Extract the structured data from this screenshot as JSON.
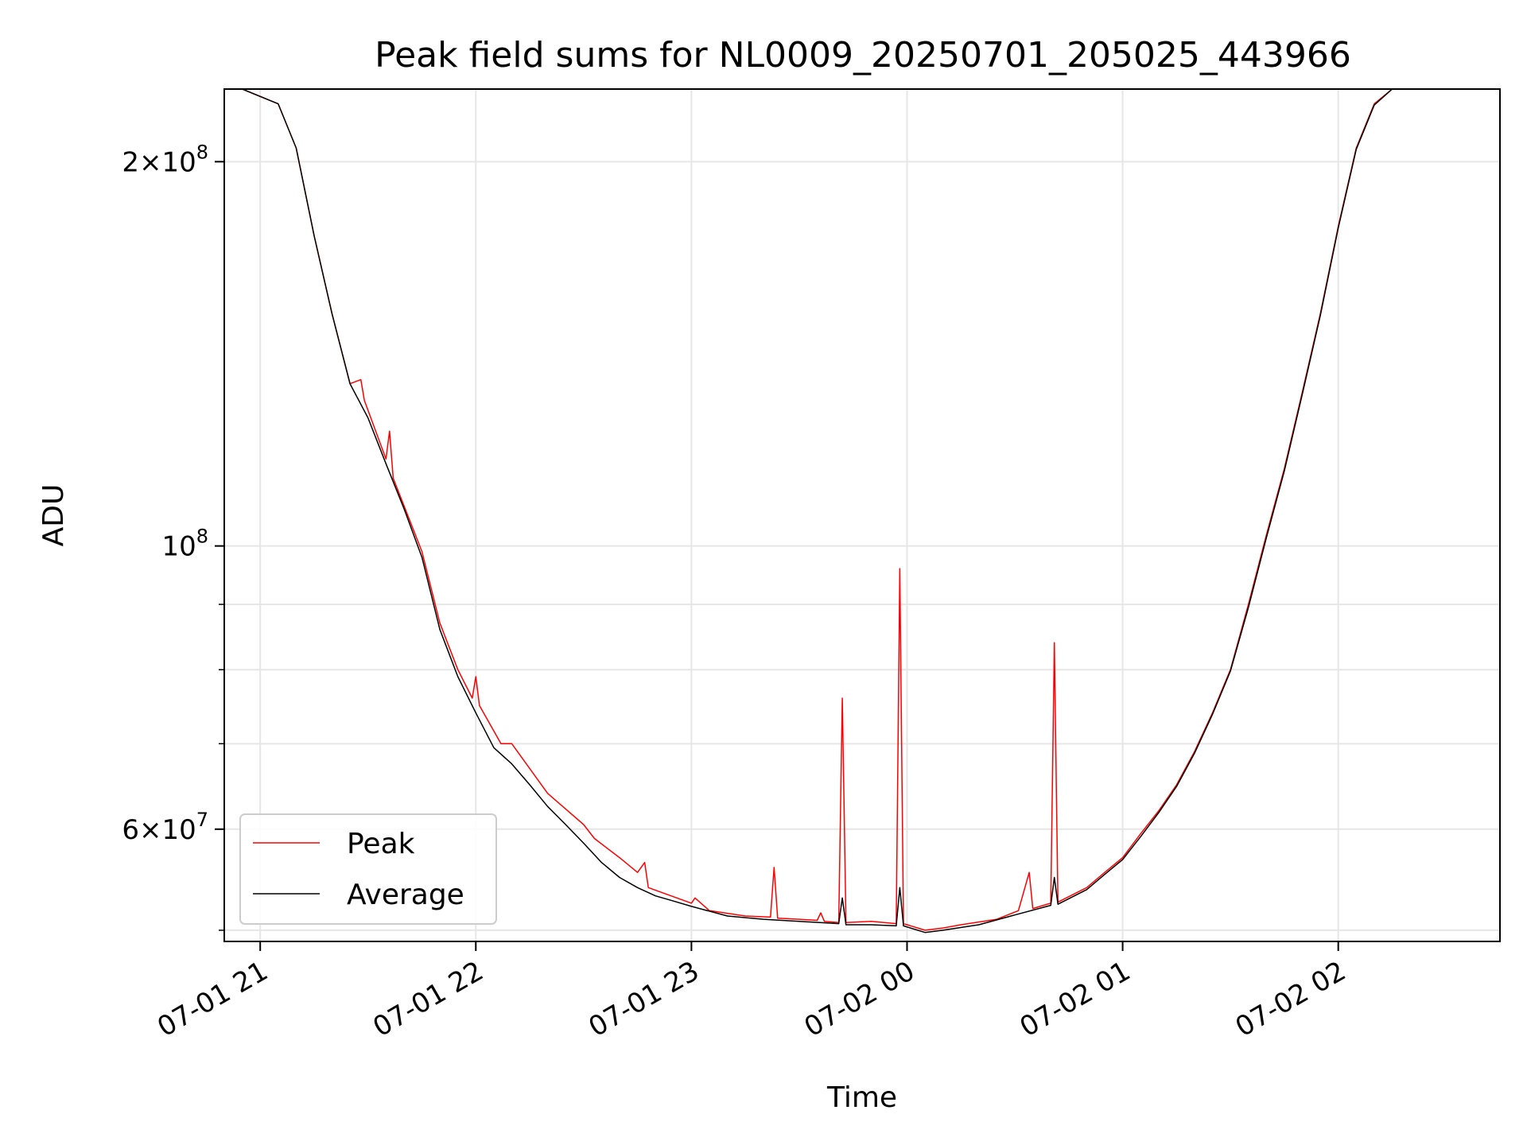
{
  "chart_data": {
    "type": "line",
    "title": "Peak field sums for NL0009_20250701_205025_443966",
    "xlabel": "Time",
    "ylabel": "ADU",
    "yscale": "log",
    "ylim": [
      49000000,
      228000000
    ],
    "xlim": [
      "2025-07-01 20:50",
      "2025-07-02 02:45"
    ],
    "grid": true,
    "legend_position": "lower-left",
    "x_ticks": [
      {
        "label": "07-01 21",
        "value": "2025-07-01 21:00"
      },
      {
        "label": "07-01 22",
        "value": "2025-07-01 22:00"
      },
      {
        "label": "07-01 23",
        "value": "2025-07-01 23:00"
      },
      {
        "label": "07-02 00",
        "value": "2025-07-02 00:00"
      },
      {
        "label": "07-02 01",
        "value": "2025-07-02 01:00"
      },
      {
        "label": "07-02 02",
        "value": "2025-07-02 02:00"
      }
    ],
    "y_ticks": [
      {
        "mantissa": "2",
        "exp": "8",
        "value": 200000000
      },
      {
        "mantissa": "",
        "exp": "8",
        "value": 100000000
      },
      {
        "mantissa": "6",
        "exp": "7",
        "value": 60000000
      }
    ],
    "series": [
      {
        "name": "Peak",
        "color": "#ff0000",
        "points": [
          [
            "2025-07-01 20:55",
            228000000
          ],
          [
            "2025-07-01 21:05",
            222000000
          ],
          [
            "2025-07-01 21:10",
            205000000
          ],
          [
            "2025-07-01 21:15",
            175000000
          ],
          [
            "2025-07-01 21:20",
            152000000
          ],
          [
            "2025-07-01 21:25",
            134000000
          ],
          [
            "2025-07-01 21:28",
            135000000
          ],
          [
            "2025-07-01 21:29",
            130000000
          ],
          [
            "2025-07-01 21:35",
            117000000
          ],
          [
            "2025-07-01 21:36",
            123000000
          ],
          [
            "2025-07-01 21:37",
            113000000
          ],
          [
            "2025-07-01 21:45",
            99000000
          ],
          [
            "2025-07-01 21:50",
            87000000
          ],
          [
            "2025-07-01 21:55",
            80000000
          ],
          [
            "2025-07-01 21:59",
            76000000
          ],
          [
            "2025-07-01 22:00",
            79000000
          ],
          [
            "2025-07-01 22:01",
            75000000
          ],
          [
            "2025-07-01 22:07",
            70000000
          ],
          [
            "2025-07-01 22:10",
            70000000
          ],
          [
            "2025-07-01 22:20",
            64000000
          ],
          [
            "2025-07-01 22:30",
            60500000
          ],
          [
            "2025-07-01 22:33",
            59000000
          ],
          [
            "2025-07-01 22:40",
            57000000
          ],
          [
            "2025-07-01 22:45",
            55500000
          ],
          [
            "2025-07-01 22:47",
            56500000
          ],
          [
            "2025-07-01 22:48",
            54000000
          ],
          [
            "2025-07-01 23:00",
            52500000
          ],
          [
            "2025-07-01 23:01",
            53000000
          ],
          [
            "2025-07-01 23:05",
            51800000
          ],
          [
            "2025-07-01 23:15",
            51300000
          ],
          [
            "2025-07-01 23:22",
            51200000
          ],
          [
            "2025-07-01 23:23",
            56000000
          ],
          [
            "2025-07-01 23:24",
            51100000
          ],
          [
            "2025-07-01 23:30",
            51000000
          ],
          [
            "2025-07-01 23:35",
            50900000
          ],
          [
            "2025-07-01 23:36",
            51600000
          ],
          [
            "2025-07-01 23:37",
            50800000
          ],
          [
            "2025-07-01 23:41",
            50700000
          ],
          [
            "2025-07-01 23:42",
            76000000
          ],
          [
            "2025-07-01 23:43",
            50700000
          ],
          [
            "2025-07-01 23:50",
            50800000
          ],
          [
            "2025-07-01 23:57",
            50600000
          ],
          [
            "2025-07-01 23:58",
            96000000
          ],
          [
            "2025-07-01 23:59",
            50600000
          ],
          [
            "2025-07-02 00:05",
            50000000
          ],
          [
            "2025-07-02 00:10",
            50200000
          ],
          [
            "2025-07-02 00:15",
            50500000
          ],
          [
            "2025-07-02 00:25",
            51000000
          ],
          [
            "2025-07-02 00:31",
            51800000
          ],
          [
            "2025-07-02 00:34",
            55500000
          ],
          [
            "2025-07-02 00:35",
            52000000
          ],
          [
            "2025-07-02 00:40",
            52500000
          ],
          [
            "2025-07-02 00:41",
            84000000
          ],
          [
            "2025-07-02 00:42",
            52600000
          ],
          [
            "2025-07-02 00:50",
            54000000
          ],
          [
            "2025-07-02 00:55",
            55500000
          ],
          [
            "2025-07-02 01:00",
            57000000
          ],
          [
            "2025-07-02 01:05",
            59500000
          ],
          [
            "2025-07-02 01:10",
            62000000
          ],
          [
            "2025-07-02 01:15",
            65000000
          ],
          [
            "2025-07-02 01:20",
            69000000
          ],
          [
            "2025-07-02 01:25",
            74000000
          ],
          [
            "2025-07-02 01:30",
            80000000
          ],
          [
            "2025-07-02 01:35",
            90000000
          ],
          [
            "2025-07-02 01:40",
            102000000
          ],
          [
            "2025-07-02 01:45",
            115000000
          ],
          [
            "2025-07-02 01:50",
            132000000
          ],
          [
            "2025-07-02 01:55",
            152000000
          ],
          [
            "2025-07-02 02:00",
            178000000
          ],
          [
            "2025-07-02 02:05",
            205000000
          ],
          [
            "2025-07-02 02:10",
            222000000
          ],
          [
            "2025-07-02 02:15",
            228000000
          ],
          [
            "2025-07-02 02:40",
            228000000
          ]
        ]
      },
      {
        "name": "Average",
        "color": "#000000",
        "points": [
          [
            "2025-07-01 20:55",
            228000000
          ],
          [
            "2025-07-01 21:05",
            222000000
          ],
          [
            "2025-07-01 21:10",
            205000000
          ],
          [
            "2025-07-01 21:15",
            175000000
          ],
          [
            "2025-07-01 21:20",
            152000000
          ],
          [
            "2025-07-01 21:25",
            134000000
          ],
          [
            "2025-07-01 21:30",
            126000000
          ],
          [
            "2025-07-01 21:35",
            116000000
          ],
          [
            "2025-07-01 21:40",
            107000000
          ],
          [
            "2025-07-01 21:45",
            98000000
          ],
          [
            "2025-07-01 21:50",
            86000000
          ],
          [
            "2025-07-01 21:55",
            79000000
          ],
          [
            "2025-07-01 22:00",
            74000000
          ],
          [
            "2025-07-01 22:05",
            69500000
          ],
          [
            "2025-07-01 22:10",
            67500000
          ],
          [
            "2025-07-01 22:15",
            65000000
          ],
          [
            "2025-07-01 22:20",
            62500000
          ],
          [
            "2025-07-01 22:25",
            60500000
          ],
          [
            "2025-07-01 22:30",
            58500000
          ],
          [
            "2025-07-01 22:35",
            56500000
          ],
          [
            "2025-07-01 22:40",
            55000000
          ],
          [
            "2025-07-01 22:45",
            54000000
          ],
          [
            "2025-07-01 22:50",
            53200000
          ],
          [
            "2025-07-01 22:55",
            52700000
          ],
          [
            "2025-07-01 23:00",
            52200000
          ],
          [
            "2025-07-01 23:10",
            51300000
          ],
          [
            "2025-07-01 23:20",
            51000000
          ],
          [
            "2025-07-01 23:30",
            50800000
          ],
          [
            "2025-07-01 23:41",
            50600000
          ],
          [
            "2025-07-01 23:42",
            53000000
          ],
          [
            "2025-07-01 23:43",
            50500000
          ],
          [
            "2025-07-01 23:50",
            50500000
          ],
          [
            "2025-07-01 23:57",
            50400000
          ],
          [
            "2025-07-01 23:58",
            54000000
          ],
          [
            "2025-07-01 23:59",
            50400000
          ],
          [
            "2025-07-02 00:05",
            49800000
          ],
          [
            "2025-07-02 00:10",
            50000000
          ],
          [
            "2025-07-02 00:20",
            50500000
          ],
          [
            "2025-07-02 00:30",
            51400000
          ],
          [
            "2025-07-02 00:40",
            52300000
          ],
          [
            "2025-07-02 00:41",
            55000000
          ],
          [
            "2025-07-02 00:42",
            52400000
          ],
          [
            "2025-07-02 00:50",
            53800000
          ],
          [
            "2025-07-02 00:55",
            55300000
          ],
          [
            "2025-07-02 01:00",
            56800000
          ],
          [
            "2025-07-02 01:05",
            59200000
          ],
          [
            "2025-07-02 01:10",
            61800000
          ],
          [
            "2025-07-02 01:15",
            64800000
          ],
          [
            "2025-07-02 01:20",
            68800000
          ],
          [
            "2025-07-02 01:25",
            73800000
          ],
          [
            "2025-07-02 01:30",
            79800000
          ],
          [
            "2025-07-02 01:35",
            89500000
          ],
          [
            "2025-07-02 01:40",
            101500000
          ],
          [
            "2025-07-02 01:45",
            114500000
          ],
          [
            "2025-07-02 01:50",
            131500000
          ],
          [
            "2025-07-02 01:55",
            151500000
          ],
          [
            "2025-07-02 02:00",
            177500000
          ],
          [
            "2025-07-02 02:05",
            204500000
          ],
          [
            "2025-07-02 02:10",
            221500000
          ],
          [
            "2025-07-02 02:15",
            228000000
          ],
          [
            "2025-07-02 02:40",
            228000000
          ]
        ]
      }
    ]
  }
}
